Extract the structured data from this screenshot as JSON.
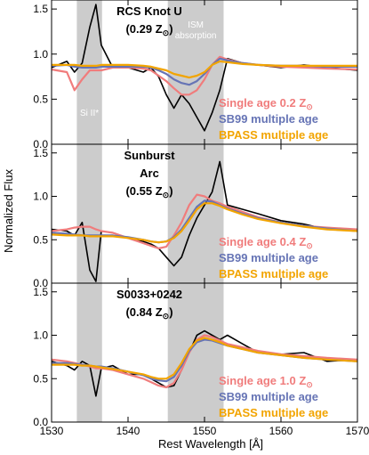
{
  "chart_data": {
    "type": "line",
    "xlabel": "Rest Wavelength [Å]",
    "ylabel": "Normalized Flux",
    "xlim": [
      1530,
      1570
    ],
    "xticks": [
      1530,
      1540,
      1550,
      1560,
      1570
    ],
    "xtick_labels": [
      "1530",
      "1540",
      "1550",
      "1560",
      "1570"
    ],
    "ylim": [
      0,
      1.6
    ],
    "yticks": [
      0,
      0.5,
      1.0,
      1.5
    ],
    "ytick_labels": [
      "0.0",
      "0.5",
      "1.0",
      "1.5"
    ],
    "shaded_regions": [
      {
        "x_range": [
          1533.3,
          1536.6
        ],
        "label": "Si II*",
        "label_panel": 0
      },
      {
        "x_range": [
          1545.2,
          1552.5
        ],
        "label": "ISM absorption",
        "label_panel": 0
      }
    ],
    "colors": {
      "observed": "#000000",
      "single_age": "#f07c7c",
      "sb99": "#6674b5",
      "bpass": "#f2a400",
      "shade": "#cccccc"
    },
    "panels": [
      {
        "title_line1": "RCS Knot U",
        "title_line2": "(0.29 Z",
        "legend": [
          {
            "text": "Single age 0.2 Z",
            "solar": true,
            "color": "#f07c7c"
          },
          {
            "text": "SB99 multiple age",
            "solar": false,
            "color": "#6674b5"
          },
          {
            "text": "BPASS multiple age",
            "solar": false,
            "color": "#f2a400"
          }
        ],
        "x": [
          1530,
          1532,
          1533,
          1534,
          1535,
          1535.8,
          1536.5,
          1538,
          1540,
          1542,
          1543,
          1544,
          1545,
          1546,
          1547,
          1548,
          1549,
          1550,
          1551,
          1552,
          1553,
          1555,
          1557,
          1560,
          1563,
          1566,
          1570
        ],
        "series": [
          {
            "name": "observed",
            "values": [
              0.85,
              0.92,
              0.8,
              0.9,
              1.3,
              1.55,
              1.1,
              0.85,
              0.85,
              0.8,
              0.85,
              0.75,
              0.55,
              0.4,
              0.55,
              0.45,
              0.3,
              0.15,
              0.35,
              0.6,
              0.95,
              0.9,
              0.88,
              0.85,
              0.88,
              0.85,
              0.82
            ]
          },
          {
            "name": "single_age",
            "values": [
              0.83,
              0.8,
              0.6,
              0.72,
              0.82,
              0.82,
              0.82,
              0.85,
              0.85,
              0.84,
              0.82,
              0.76,
              0.7,
              0.62,
              0.55,
              0.55,
              0.6,
              0.72,
              0.88,
              0.97,
              0.94,
              0.9,
              0.88,
              0.86,
              0.85,
              0.84,
              0.83
            ]
          },
          {
            "name": "sb99",
            "values": [
              0.87,
              0.88,
              0.86,
              0.85,
              0.85,
              0.85,
              0.86,
              0.86,
              0.86,
              0.86,
              0.85,
              0.82,
              0.78,
              0.72,
              0.68,
              0.66,
              0.7,
              0.78,
              0.88,
              0.95,
              0.93,
              0.9,
              0.88,
              0.87,
              0.87,
              0.86,
              0.86
            ]
          },
          {
            "name": "bpass",
            "values": [
              0.88,
              0.88,
              0.88,
              0.87,
              0.87,
              0.87,
              0.88,
              0.88,
              0.88,
              0.87,
              0.86,
              0.84,
              0.82,
              0.78,
              0.76,
              0.74,
              0.76,
              0.8,
              0.88,
              0.92,
              0.91,
              0.89,
              0.88,
              0.87,
              0.87,
              0.87,
              0.87
            ]
          }
        ]
      },
      {
        "title_line1": "Sunburst",
        "title_line2": "Arc",
        "title_line3": "(0.55 Z",
        "legend": [
          {
            "text": "Single age 0.4 Z",
            "solar": true,
            "color": "#f07c7c"
          },
          {
            "text": "SB99 multiple age",
            "solar": false,
            "color": "#6674b5"
          },
          {
            "text": "BPASS multiple age",
            "solar": false,
            "color": "#f2a400"
          }
        ],
        "x": [
          1530,
          1532,
          1533,
          1534,
          1535,
          1535.8,
          1536.5,
          1538,
          1540,
          1542,
          1543,
          1544,
          1545,
          1546,
          1547,
          1548,
          1549,
          1550,
          1551,
          1552,
          1553,
          1555,
          1557,
          1560,
          1563,
          1566,
          1570
        ],
        "series": [
          {
            "name": "observed",
            "values": [
              0.62,
              0.6,
              0.55,
              0.7,
              0.15,
              0.02,
              0.6,
              0.58,
              0.52,
              0.48,
              0.45,
              0.4,
              0.3,
              0.2,
              0.3,
              0.55,
              0.75,
              0.9,
              1.05,
              1.4,
              0.9,
              0.85,
              0.8,
              0.72,
              0.68,
              0.62,
              0.6
            ]
          },
          {
            "name": "single_age",
            "values": [
              0.6,
              0.62,
              0.64,
              0.65,
              0.65,
              0.62,
              0.6,
              0.58,
              0.52,
              0.46,
              0.43,
              0.4,
              0.42,
              0.55,
              0.7,
              0.9,
              1.02,
              1.0,
              0.95,
              0.92,
              0.88,
              0.82,
              0.76,
              0.7,
              0.66,
              0.64,
              0.62
            ]
          },
          {
            "name": "sb99",
            "values": [
              0.58,
              0.57,
              0.56,
              0.55,
              0.55,
              0.55,
              0.55,
              0.55,
              0.53,
              0.5,
              0.48,
              0.47,
              0.48,
              0.53,
              0.62,
              0.75,
              0.88,
              0.95,
              0.94,
              0.9,
              0.86,
              0.8,
              0.75,
              0.7,
              0.66,
              0.63,
              0.6
            ]
          },
          {
            "name": "bpass",
            "values": [
              0.56,
              0.55,
              0.55,
              0.55,
              0.54,
              0.54,
              0.54,
              0.54,
              0.52,
              0.5,
              0.48,
              0.47,
              0.48,
              0.52,
              0.6,
              0.72,
              0.85,
              0.92,
              0.92,
              0.89,
              0.85,
              0.79,
              0.74,
              0.69,
              0.65,
              0.62,
              0.6
            ]
          }
        ]
      },
      {
        "title_line1": "S0033+0242",
        "title_line2": "(0.84 Z",
        "legend": [
          {
            "text": "Single age 1.0 Z",
            "solar": true,
            "color": "#f07c7c"
          },
          {
            "text": "SB99 multiple age",
            "solar": false,
            "color": "#6674b5"
          },
          {
            "text": "BPASS multiple age",
            "solar": false,
            "color": "#f2a400"
          }
        ],
        "x": [
          1530,
          1532,
          1533,
          1534,
          1535,
          1535.8,
          1536.5,
          1538,
          1540,
          1542,
          1543,
          1544,
          1545,
          1546,
          1547,
          1548,
          1549,
          1550,
          1551,
          1552,
          1553,
          1555,
          1557,
          1560,
          1563,
          1566,
          1570
        ],
        "series": [
          {
            "name": "observed",
            "values": [
              0.7,
              0.65,
              0.6,
              0.7,
              0.65,
              0.3,
              0.62,
              0.65,
              0.55,
              0.55,
              0.5,
              0.45,
              0.4,
              0.42,
              0.6,
              0.8,
              1.0,
              1.05,
              1.0,
              0.95,
              1.0,
              0.9,
              0.8,
              0.78,
              0.8,
              0.7,
              0.72
            ]
          },
          {
            "name": "single_age",
            "values": [
              0.72,
              0.7,
              0.68,
              0.66,
              0.64,
              0.62,
              0.62,
              0.6,
              0.55,
              0.5,
              0.46,
              0.42,
              0.4,
              0.45,
              0.6,
              0.8,
              0.95,
              1.0,
              0.98,
              0.94,
              0.9,
              0.86,
              0.82,
              0.78,
              0.76,
              0.74,
              0.72
            ]
          },
          {
            "name": "sb99",
            "values": [
              0.68,
              0.68,
              0.67,
              0.66,
              0.65,
              0.64,
              0.64,
              0.62,
              0.58,
              0.54,
              0.5,
              0.48,
              0.47,
              0.52,
              0.65,
              0.82,
              0.92,
              0.95,
              0.94,
              0.91,
              0.88,
              0.84,
              0.8,
              0.77,
              0.74,
              0.72,
              0.7
            ]
          },
          {
            "name": "bpass",
            "values": [
              0.66,
              0.66,
              0.66,
              0.65,
              0.65,
              0.64,
              0.63,
              0.61,
              0.58,
              0.55,
              0.52,
              0.5,
              0.5,
              0.55,
              0.68,
              0.84,
              0.94,
              0.97,
              0.95,
              0.92,
              0.88,
              0.84,
              0.8,
              0.77,
              0.74,
              0.72,
              0.7
            ]
          }
        ]
      }
    ]
  }
}
